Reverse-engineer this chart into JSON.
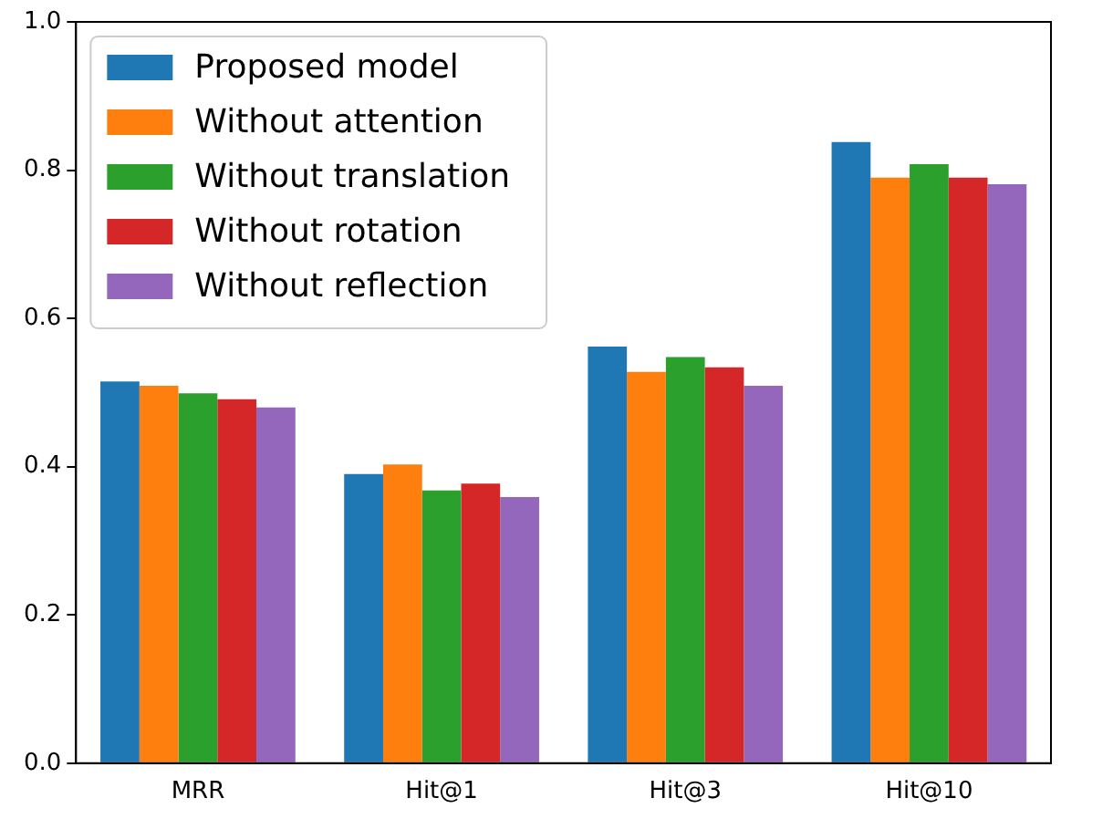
{
  "chart_data": {
    "type": "bar",
    "categories": [
      "MRR",
      "Hit@1",
      "Hit@3",
      "Hit@10"
    ],
    "series": [
      {
        "name": "Proposed model",
        "color": "#1f77b4",
        "values": [
          0.515,
          0.39,
          0.562,
          0.838
        ]
      },
      {
        "name": "Without attention",
        "color": "#ff7f0e",
        "values": [
          0.509,
          0.403,
          0.528,
          0.79
        ]
      },
      {
        "name": "Without translation",
        "color": "#2ca02c",
        "values": [
          0.499,
          0.368,
          0.548,
          0.808
        ]
      },
      {
        "name": "Without rotation",
        "color": "#d62728",
        "values": [
          0.491,
          0.377,
          0.534,
          0.79
        ]
      },
      {
        "name": "Without reflection",
        "color": "#9467bd",
        "values": [
          0.48,
          0.359,
          0.509,
          0.781
        ]
      }
    ],
    "ylim": [
      0,
      1
    ],
    "yticks": [
      {
        "value": 0,
        "label": "0.0"
      },
      {
        "value": 0.2,
        "label": "0.2"
      },
      {
        "value": 0.4,
        "label": "0.4"
      },
      {
        "value": 0.6,
        "label": "0.6"
      },
      {
        "value": 0.8,
        "label": "0.8"
      },
      {
        "value": 1,
        "label": "1.0"
      }
    ],
    "grid": false,
    "legend": "top left"
  }
}
